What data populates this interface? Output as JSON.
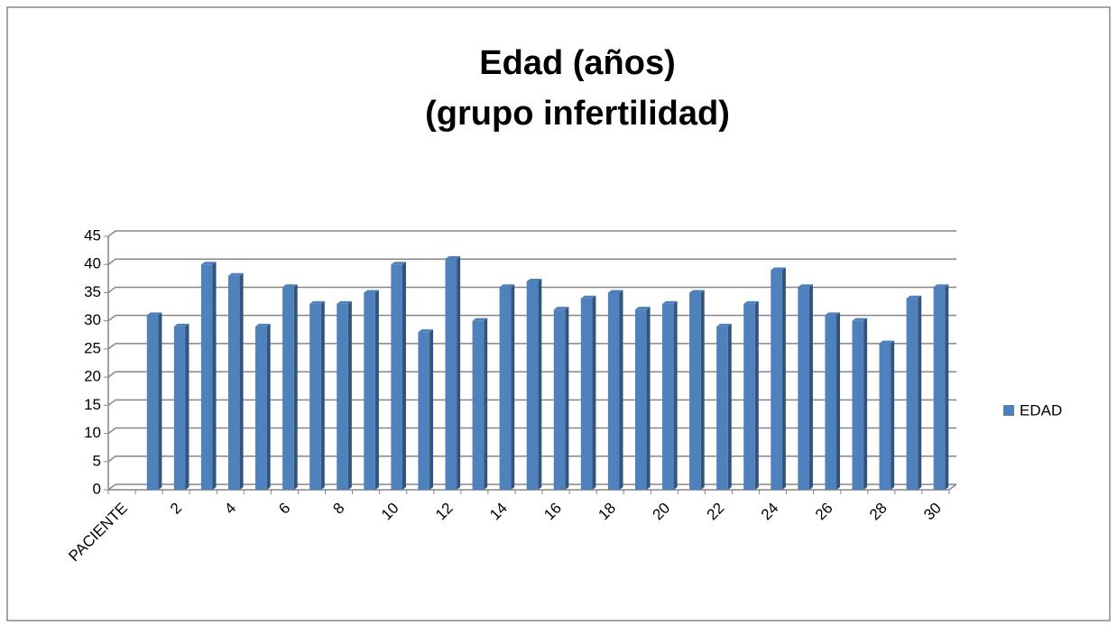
{
  "chart_data": {
    "type": "bar",
    "title": [
      "Edad (años)",
      "(grupo infertilidad)"
    ],
    "categories": [
      "PACIENTE",
      null,
      "2",
      null,
      "4",
      null,
      "6",
      null,
      "8",
      null,
      "10",
      null,
      "12",
      null,
      "14",
      null,
      "16",
      null,
      "18",
      null,
      "20",
      null,
      "22",
      null,
      "24",
      null,
      "26",
      null,
      "28",
      null,
      "30"
    ],
    "series": [
      {
        "name": "EDAD",
        "color": "#4f81bd",
        "values": [
          null,
          31,
          29,
          40,
          38,
          29,
          36,
          33,
          33,
          35,
          40,
          28,
          41,
          30,
          36,
          37,
          32,
          34,
          35,
          32,
          33,
          35,
          29,
          33,
          39,
          36,
          31,
          30,
          26,
          34,
          36
        ]
      }
    ],
    "ylim": [
      0,
      45
    ],
    "yticks": [
      0,
      5,
      10,
      15,
      20,
      25,
      30,
      35,
      40,
      45
    ],
    "grid": true,
    "legend": "right"
  }
}
